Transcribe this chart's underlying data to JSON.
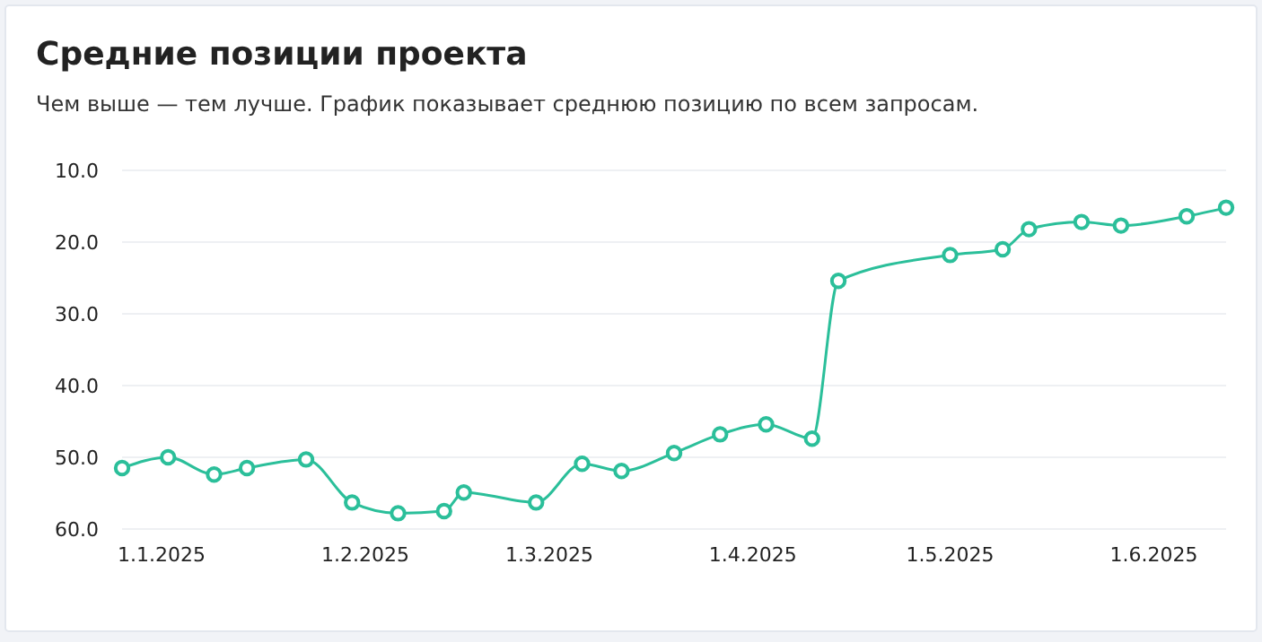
{
  "chart_data": {
    "type": "line",
    "title": "Средние позиции проекта",
    "subtitle": "Чем выше — тем лучше. График показывает среднюю позицию по всем запросам.",
    "x": [
      "2024-12-26",
      "2025-01-02",
      "2025-01-09",
      "2025-01-14",
      "2025-01-23",
      "2025-01-30",
      "2025-02-06",
      "2025-02-13",
      "2025-02-16",
      "2025-02-27",
      "2025-03-06",
      "2025-03-12",
      "2025-03-20",
      "2025-03-27",
      "2025-04-03",
      "2025-04-10",
      "2025-04-14",
      "2025-05-01",
      "2025-05-09",
      "2025-05-13",
      "2025-05-21",
      "2025-05-27",
      "2025-06-06",
      "2025-06-12"
    ],
    "series": [
      {
        "color": "#2bbf9a",
        "values": [
          51.5,
          50.0,
          52.4,
          51.5,
          50.3,
          56.3,
          57.8,
          57.5,
          54.9,
          56.3,
          50.9,
          51.9,
          49.4,
          46.8,
          45.4,
          47.4,
          25.4,
          21.8,
          21.0,
          18.2,
          17.2,
          17.7,
          16.4,
          15.2
        ]
      }
    ],
    "xlim": [
      "2024-12-26",
      "2025-06-12"
    ],
    "xticks": [
      {
        "value": "2025-01-01",
        "label": "1.1.2025"
      },
      {
        "value": "2025-02-01",
        "label": "1.2.2025"
      },
      {
        "value": "2025-03-01",
        "label": "1.3.2025"
      },
      {
        "value": "2025-04-01",
        "label": "1.4.2025"
      },
      {
        "value": "2025-05-01",
        "label": "1.5.2025"
      },
      {
        "value": "2025-06-01",
        "label": "1.6.2025"
      }
    ],
    "ylim": [
      60,
      10
    ],
    "yticks": [
      {
        "value": 10,
        "label": "10.0"
      },
      {
        "value": 20,
        "label": "20.0"
      },
      {
        "value": 30,
        "label": "30.0"
      },
      {
        "value": 40,
        "label": "40.0"
      },
      {
        "value": 50,
        "label": "50.0"
      },
      {
        "value": 60,
        "label": "60.0"
      }
    ],
    "grid": "y",
    "marker": "circle",
    "line_style": "solid"
  }
}
